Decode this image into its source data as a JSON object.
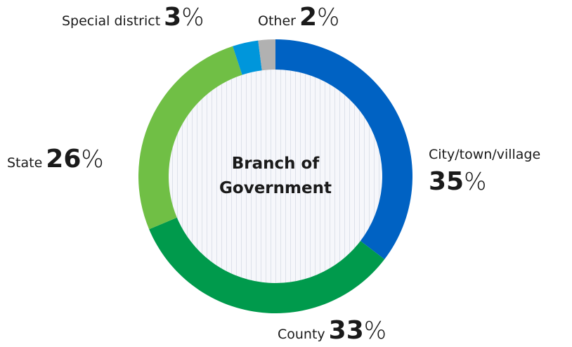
{
  "chart_data": {
    "type": "donut",
    "center_label": [
      "Branch of",
      "Government"
    ],
    "categories": [
      "City/town/village",
      "County",
      "State",
      "Special district",
      "Other"
    ],
    "values": [
      35,
      33,
      26,
      3,
      2
    ],
    "value_labels": [
      "35%",
      "33%",
      "26%",
      "3%",
      "2%"
    ],
    "colors": [
      "#0062c3",
      "#009a4c",
      "#70bf45",
      "#0096db",
      "#b1b1b1"
    ]
  }
}
